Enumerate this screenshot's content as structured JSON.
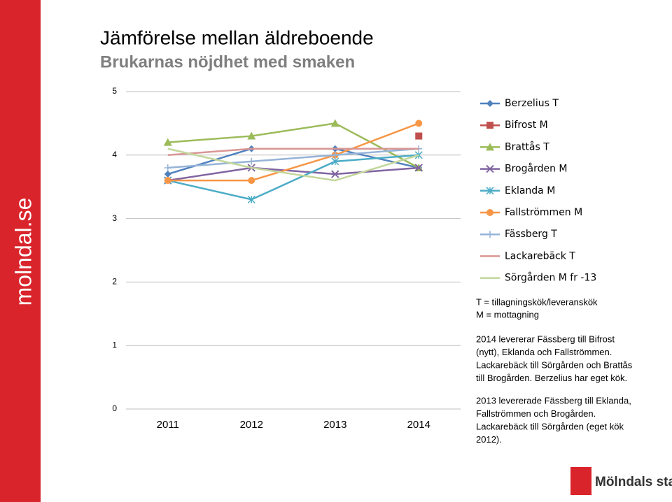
{
  "brand": "molndal.se",
  "logo": "Mölndals stad",
  "chart_data": {
    "type": "line",
    "title": "Jämförelse mellan äldreboende",
    "subtitle": "Brukarnas nöjdhet med smaken",
    "categories": [
      "2011",
      "2012",
      "2013",
      "2014"
    ],
    "ylim": [
      0,
      5
    ],
    "yticks": [
      0,
      1,
      2,
      3,
      4,
      5
    ],
    "grid": true,
    "series": [
      {
        "name": "Berzelius T",
        "color": "#4f81bd",
        "marker": "diamond",
        "values": [
          3.7,
          4.1,
          4.1,
          3.8
        ]
      },
      {
        "name": "Bifrost M",
        "color": "#c0504d",
        "marker": "square",
        "values": [
          null,
          null,
          null,
          4.3
        ]
      },
      {
        "name": "Brattås T",
        "color": "#9bbb59",
        "marker": "triangle",
        "values": [
          4.2,
          4.3,
          4.5,
          3.8
        ]
      },
      {
        "name": "Brogården M",
        "color": "#8064a2",
        "marker": "x",
        "values": [
          3.6,
          3.8,
          3.7,
          3.8
        ]
      },
      {
        "name": "Eklanda M",
        "color": "#4bacc6",
        "marker": "star",
        "values": [
          3.6,
          3.3,
          3.9,
          4.0
        ]
      },
      {
        "name": "Fallströmmen M",
        "color": "#f79646",
        "marker": "circle",
        "values": [
          3.6,
          3.6,
          4.0,
          4.5
        ]
      },
      {
        "name": "Fässberg T",
        "color": "#95b3d7",
        "marker": "plus",
        "values": [
          3.8,
          3.9,
          4.0,
          4.1
        ]
      },
      {
        "name": "Lackarebäck T",
        "color": "#d99694",
        "marker": "none",
        "values": [
          4.0,
          4.1,
          4.1,
          4.1
        ]
      },
      {
        "name": "Sörgården M fr -13",
        "color": "#c3d69b",
        "marker": "none",
        "values": [
          4.1,
          3.8,
          3.6,
          4.0
        ]
      }
    ],
    "annotations": [
      [
        "T = tillagningskök/leveranskök",
        "M = mottagning"
      ],
      [
        "2014 levererar Fässberg till Bifrost",
        "(nytt), Eklanda och Fallströmmen.",
        "Lackarebäck till Sörgården och Brattås",
        "till Brogården. Berzelius har eget kök."
      ],
      [
        "2013 levererade Fässberg till Eklanda,",
        "Fallströmmen och Brogården.",
        "Lackarebäck till Sörgården (eget kök",
        "2012)."
      ]
    ]
  }
}
